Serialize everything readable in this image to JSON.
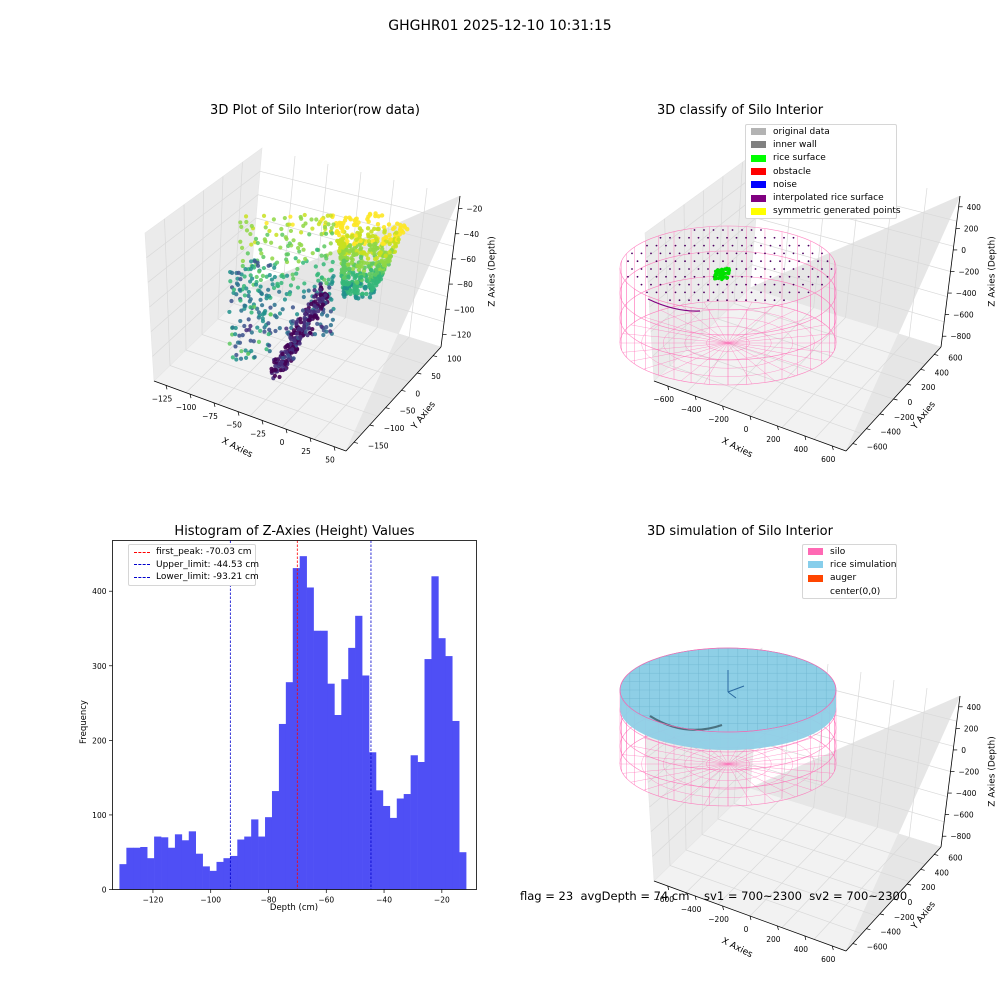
{
  "figure": {
    "suptitle": "GHGHR01 2025-12-10 10:31:15",
    "bottom_note": "flag = 23  avgDepth = 74 cm    sv1 = 700~2300  sv2 = 700~2300"
  },
  "panels": {
    "raw": {
      "title": "3D Plot of Silo Interior(row data)",
      "xlabel": "X Axies",
      "ylabel": "Y Axies",
      "zlabel": "Z Axies (Depth)",
      "xticks": [
        "−125",
        "−100",
        "−75",
        "−50",
        "−25",
        "0",
        "25",
        "50"
      ],
      "yticks": [
        "−150",
        "−100",
        "−50",
        "0",
        "50",
        "100"
      ],
      "zticks": [
        "−20",
        "−40",
        "−60",
        "−80",
        "−100",
        "−120"
      ]
    },
    "classify": {
      "title": "3D classify of Silo Interior",
      "xlabel": "X Axies",
      "ylabel": "Y Axies",
      "zlabel": "Z Axies (Depth)",
      "xticks": [
        "−600",
        "−400",
        "−200",
        "0",
        "200",
        "400",
        "600"
      ],
      "yticks": [
        "−600",
        "−400",
        "−200",
        "0",
        "200",
        "400",
        "600"
      ],
      "zticks": [
        "400",
        "200",
        "0",
        "−200",
        "−400",
        "−600",
        "−800"
      ],
      "legend": [
        {
          "label": "original data",
          "color": "#b3b3b3"
        },
        {
          "label": "inner wall",
          "color": "#808080"
        },
        {
          "label": "rice surface",
          "color": "#00ff00"
        },
        {
          "label": "obstacle",
          "color": "#ff0000"
        },
        {
          "label": "noise",
          "color": "#0000ff"
        },
        {
          "label": "interpolated rice surface",
          "color": "#800080"
        },
        {
          "label": "symmetric generated points",
          "color": "#ffff00"
        }
      ]
    },
    "simulation": {
      "title": "3D simulation of Silo Interior",
      "xlabel": "X Axies",
      "ylabel": "Y Axies",
      "zlabel": "Z Axies (Depth)",
      "xticks": [
        "−600",
        "−400",
        "−200",
        "0",
        "200",
        "400",
        "600"
      ],
      "yticks": [
        "−600",
        "−400",
        "−200",
        "0",
        "200",
        "400",
        "600"
      ],
      "zticks": [
        "400",
        "200",
        "0",
        "−200",
        "−400",
        "−600",
        "−800"
      ],
      "legend": [
        {
          "label": "silo",
          "color": "#ff69b4"
        },
        {
          "label": "rice simulation",
          "color": "#87ceeb"
        },
        {
          "label": "auger",
          "color": "#ff4500"
        },
        {
          "label": "center(0,0)",
          "color": "#ffffff"
        }
      ]
    }
  },
  "chart_data": [
    {
      "type": "bar",
      "title": "Histogram of Z-Axies (Height) Values",
      "xlabel": "Depth (cm)",
      "ylabel": "Frequency",
      "xlim": [
        -134,
        -8
      ],
      "ylim": [
        0,
        468
      ],
      "bin_width": 2.4,
      "bins_start": -131.6,
      "values": [
        34,
        56,
        56,
        57,
        42,
        71,
        70,
        56,
        74,
        66,
        78,
        48,
        31,
        25,
        37,
        42,
        45,
        67,
        71,
        94,
        71,
        97,
        132,
        222,
        278,
        431,
        447,
        405,
        347,
        347,
        276,
        234,
        282,
        324,
        367,
        287,
        184,
        133,
        112,
        96,
        122,
        128,
        180,
        171,
        309,
        420,
        337,
        313,
        226,
        50
      ],
      "xticks": [
        -120,
        -100,
        -80,
        -60,
        -40,
        -20
      ],
      "yticks": [
        0,
        100,
        200,
        300,
        400
      ],
      "xtick_labels": [
        "−120",
        "−100",
        "−80",
        "−60",
        "−40",
        "−20"
      ],
      "ytick_labels": [
        "0",
        "100",
        "200",
        "300",
        "400"
      ],
      "bar_color": "#4f4ff5",
      "grid": false,
      "legend_position": "top-left",
      "reference_lines": [
        {
          "name": "first_peak: -70.03 cm",
          "value": -70.03,
          "color": "#ff0000"
        },
        {
          "name": "Upper_limit: -44.53 cm",
          "value": -44.53,
          "color": "#0000cc"
        },
        {
          "name": "Lower_limit: -93.21 cm",
          "value": -93.21,
          "color": "#0000cc"
        }
      ]
    }
  ]
}
